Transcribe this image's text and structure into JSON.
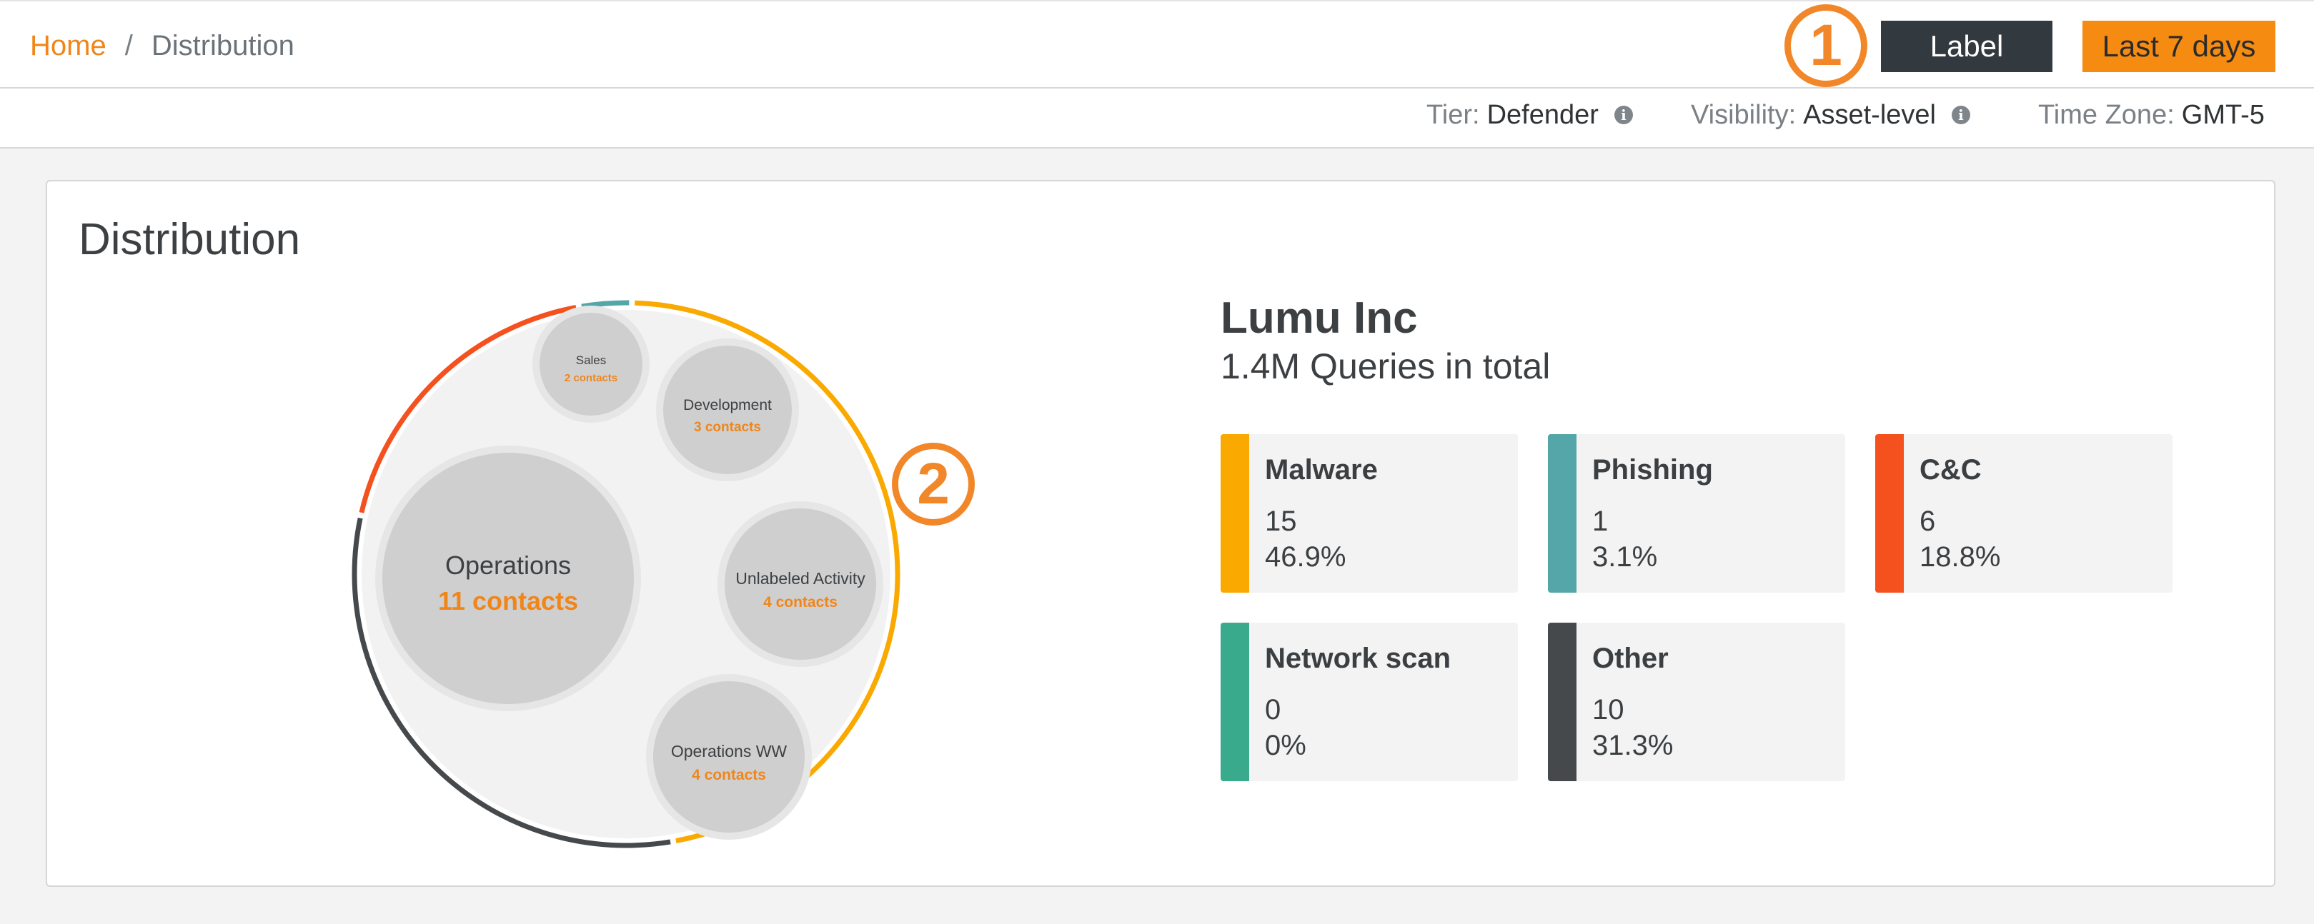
{
  "breadcrumb": {
    "home": "Home",
    "separator": "/",
    "current": "Distribution"
  },
  "markers": {
    "one": "1",
    "two": "2"
  },
  "toolbar": {
    "label_button": "Label",
    "range_button": "Last 7 days"
  },
  "meta": {
    "tier_key": "Tier:",
    "tier_value": "Defender",
    "visibility_key": "Visibility:",
    "visibility_value": "Asset-level",
    "timezone_key": "Time Zone:",
    "timezone_value": "GMT-5",
    "info_icon": "i"
  },
  "card": {
    "title": "Distribution"
  },
  "org": {
    "name": "Lumu Inc",
    "total": "1.4M Queries in total"
  },
  "colors": {
    "malware": "#f9a900",
    "phishing": "#55a6a8",
    "cc": "#f4511e",
    "network_scan": "#3aaa8d",
    "other": "#46494c",
    "accent": "#f0861a"
  },
  "bubbles": [
    {
      "name": "Operations",
      "contacts": "11 contacts"
    },
    {
      "name": "Unlabeled Activity",
      "contacts": "4 contacts"
    },
    {
      "name": "Operations WW",
      "contacts": "4 contacts"
    },
    {
      "name": "Development",
      "contacts": "3 contacts"
    },
    {
      "name": "Sales",
      "contacts": "2 contacts"
    }
  ],
  "categories": [
    {
      "name": "Malware",
      "count": "15",
      "percent": "46.9%",
      "value": 15
    },
    {
      "name": "Phishing",
      "count": "1",
      "percent": "3.1%",
      "value": 1
    },
    {
      "name": "C&C",
      "count": "6",
      "percent": "18.8%",
      "value": 6
    },
    {
      "name": "Network scan",
      "count": "0",
      "percent": "0%",
      "value": 0
    },
    {
      "name": "Other",
      "count": "10",
      "percent": "31.3%",
      "value": 10
    }
  ]
}
